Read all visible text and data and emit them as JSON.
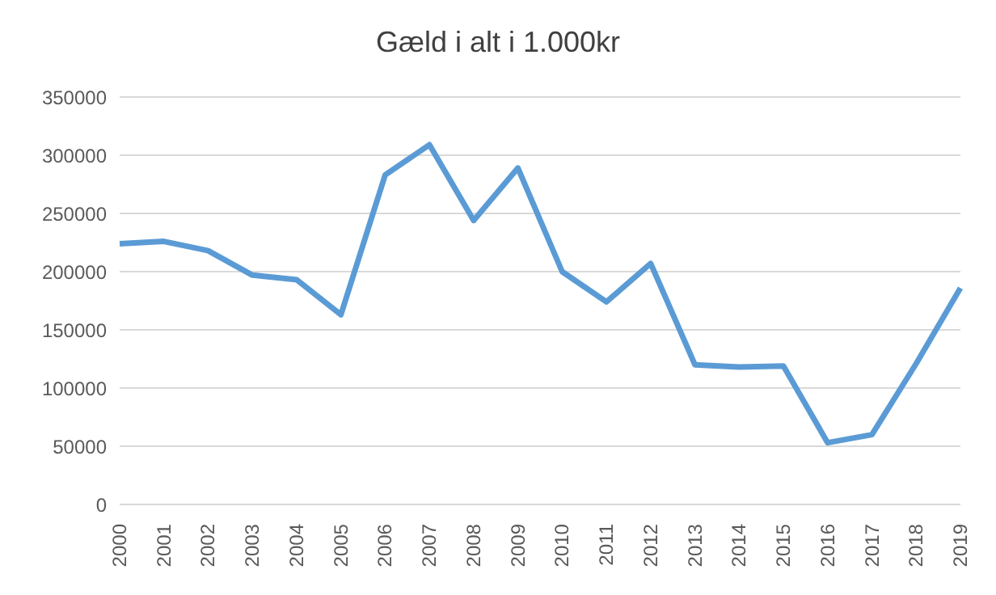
{
  "chart_data": {
    "type": "line",
    "title": "Gæld i alt i 1.000kr",
    "categories": [
      "2000",
      "2001",
      "2002",
      "2003",
      "2004",
      "2005",
      "2006",
      "2007",
      "2008",
      "2009",
      "2010",
      "2011",
      "2012",
      "2013",
      "2014",
      "2015",
      "2016",
      "2017",
      "2018",
      "2019"
    ],
    "series": [
      {
        "color": "#5b9bd5",
        "values": [
          224000,
          226000,
          218000,
          197000,
          193000,
          163000,
          283000,
          309000,
          244000,
          289000,
          200000,
          174000,
          207000,
          120000,
          118000,
          119000,
          53000,
          60000,
          121000,
          186000
        ]
      }
    ],
    "ylim": [
      0,
      350000
    ],
    "yticks": [
      0,
      50000,
      100000,
      150000,
      200000,
      250000,
      300000,
      350000
    ],
    "grid": "y",
    "legend": false,
    "marker": "none",
    "line_style": "solid"
  }
}
